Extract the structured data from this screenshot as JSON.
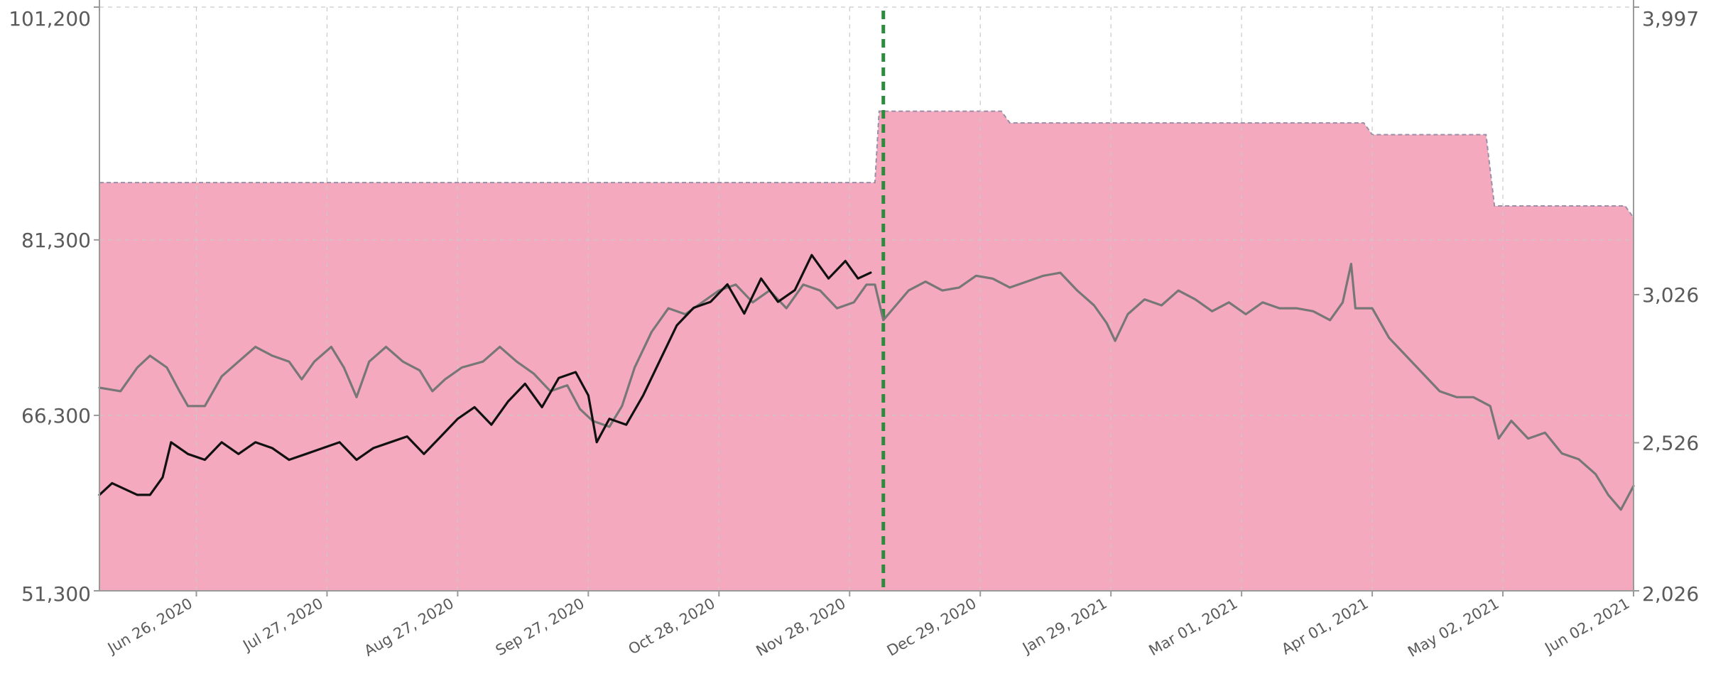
{
  "chart_data": {
    "type": "line",
    "title": "",
    "xlabel": "",
    "ylabel_left": "",
    "ylabel_right": "",
    "x_domain": [
      "2020-06-03",
      "2021-06-02"
    ],
    "x_ticks": [
      {
        "date": "2020-06-26",
        "label": "Jun 26, 2020"
      },
      {
        "date": "2020-07-27",
        "label": "Jul 27, 2020"
      },
      {
        "date": "2020-08-27",
        "label": "Aug 27, 2020"
      },
      {
        "date": "2020-09-27",
        "label": "Sep 27, 2020"
      },
      {
        "date": "2020-10-28",
        "label": "Oct 28, 2020"
      },
      {
        "date": "2020-11-28",
        "label": "Nov 28, 2020"
      },
      {
        "date": "2020-12-29",
        "label": "Dec 29, 2020"
      },
      {
        "date": "2021-01-29",
        "label": "Jan 29, 2021"
      },
      {
        "date": "2021-03-01",
        "label": "Mar 01, 2021"
      },
      {
        "date": "2021-04-01",
        "label": "Apr 01, 2021"
      },
      {
        "date": "2021-05-02",
        "label": "May 02, 2021"
      },
      {
        "date": "2021-06-02",
        "label": "Jun 02, 2021"
      }
    ],
    "left_axis": {
      "range": [
        51300,
        101200
      ],
      "ticks": [
        {
          "value": 51300,
          "label": "51,300"
        },
        {
          "value": 66300,
          "label": "66,300"
        },
        {
          "value": 81300,
          "label": "81,300"
        },
        {
          "value": 101200,
          "label": "101,200"
        }
      ]
    },
    "right_axis": {
      "range": [
        2026,
        3997
      ],
      "ticks": [
        {
          "value": 2026,
          "label": "2,026"
        },
        {
          "value": 2526,
          "label": "2,526"
        },
        {
          "value": 3026,
          "label": "3,026"
        },
        {
          "value": 3997,
          "label": "3,997"
        }
      ]
    },
    "grid": true,
    "marker_line": {
      "date": "2020-12-06",
      "color": "#2e8b3e",
      "style": "dashed"
    },
    "series": [
      {
        "kind": "area",
        "axis": "left",
        "color": "#f4a9bf",
        "points": [
          [
            "2020-06-03",
            86200
          ],
          [
            "2020-12-04",
            86200
          ],
          [
            "2020-12-05",
            92300
          ],
          [
            "2021-01-03",
            92300
          ],
          [
            "2021-01-05",
            91300
          ],
          [
            "2021-03-30",
            91300
          ],
          [
            "2021-04-01",
            90300
          ],
          [
            "2021-04-28",
            90300
          ],
          [
            "2021-04-30",
            84200
          ],
          [
            "2021-05-31",
            84200
          ],
          [
            "2021-06-02",
            83200
          ]
        ]
      },
      {
        "kind": "line",
        "axis": "right",
        "color": "#777777",
        "points": [
          [
            "2020-06-03",
            2712
          ],
          [
            "2020-06-08",
            2700
          ],
          [
            "2020-06-12",
            2780
          ],
          [
            "2020-06-15",
            2820
          ],
          [
            "2020-06-19",
            2780
          ],
          [
            "2020-06-22",
            2700
          ],
          [
            "2020-06-24",
            2650
          ],
          [
            "2020-06-28",
            2650
          ],
          [
            "2020-07-02",
            2750
          ],
          [
            "2020-07-06",
            2800
          ],
          [
            "2020-07-10",
            2850
          ],
          [
            "2020-07-14",
            2820
          ],
          [
            "2020-07-18",
            2800
          ],
          [
            "2020-07-21",
            2740
          ],
          [
            "2020-07-24",
            2800
          ],
          [
            "2020-07-28",
            2850
          ],
          [
            "2020-07-31",
            2780
          ],
          [
            "2020-08-03",
            2680
          ],
          [
            "2020-08-06",
            2800
          ],
          [
            "2020-08-10",
            2850
          ],
          [
            "2020-08-14",
            2800
          ],
          [
            "2020-08-18",
            2770
          ],
          [
            "2020-08-21",
            2700
          ],
          [
            "2020-08-24",
            2740
          ],
          [
            "2020-08-28",
            2780
          ],
          [
            "2020-09-02",
            2800
          ],
          [
            "2020-09-06",
            2850
          ],
          [
            "2020-09-10",
            2800
          ],
          [
            "2020-09-14",
            2760
          ],
          [
            "2020-09-18",
            2700
          ],
          [
            "2020-09-22",
            2720
          ],
          [
            "2020-09-25",
            2640
          ],
          [
            "2020-09-28",
            2600
          ],
          [
            "2020-10-02",
            2580
          ],
          [
            "2020-10-05",
            2650
          ],
          [
            "2020-10-08",
            2780
          ],
          [
            "2020-10-12",
            2900
          ],
          [
            "2020-10-16",
            2980
          ],
          [
            "2020-10-20",
            2960
          ],
          [
            "2020-10-24",
            3000
          ],
          [
            "2020-10-28",
            3040
          ],
          [
            "2020-11-01",
            3060
          ],
          [
            "2020-11-05",
            3000
          ],
          [
            "2020-11-09",
            3040
          ],
          [
            "2020-11-13",
            2980
          ],
          [
            "2020-11-17",
            3060
          ],
          [
            "2020-11-21",
            3040
          ],
          [
            "2020-11-25",
            2980
          ],
          [
            "2020-11-29",
            3000
          ],
          [
            "2020-12-02",
            3060
          ],
          [
            "2020-12-04",
            3060
          ],
          [
            "2020-12-06",
            2940
          ],
          [
            "2020-12-09",
            2990
          ],
          [
            "2020-12-12",
            3040
          ],
          [
            "2020-12-16",
            3070
          ],
          [
            "2020-12-20",
            3040
          ],
          [
            "2020-12-24",
            3050
          ],
          [
            "2020-12-28",
            3090
          ],
          [
            "2021-01-01",
            3080
          ],
          [
            "2021-01-05",
            3050
          ],
          [
            "2021-01-09",
            3070
          ],
          [
            "2021-01-13",
            3090
          ],
          [
            "2021-01-17",
            3100
          ],
          [
            "2021-01-21",
            3040
          ],
          [
            "2021-01-25",
            2990
          ],
          [
            "2021-01-28",
            2930
          ],
          [
            "2021-01-30",
            2870
          ],
          [
            "2021-02-02",
            2960
          ],
          [
            "2021-02-06",
            3010
          ],
          [
            "2021-02-10",
            2990
          ],
          [
            "2021-02-14",
            3040
          ],
          [
            "2021-02-18",
            3010
          ],
          [
            "2021-02-22",
            2970
          ],
          [
            "2021-02-26",
            3000
          ],
          [
            "2021-03-02",
            2960
          ],
          [
            "2021-03-06",
            3000
          ],
          [
            "2021-03-10",
            2980
          ],
          [
            "2021-03-14",
            2980
          ],
          [
            "2021-03-18",
            2970
          ],
          [
            "2021-03-22",
            2940
          ],
          [
            "2021-03-25",
            3000
          ],
          [
            "2021-03-27",
            3130
          ],
          [
            "2021-03-28",
            2980
          ],
          [
            "2021-04-01",
            2980
          ],
          [
            "2021-04-05",
            2880
          ],
          [
            "2021-04-09",
            2820
          ],
          [
            "2021-04-13",
            2760
          ],
          [
            "2021-04-17",
            2700
          ],
          [
            "2021-04-21",
            2680
          ],
          [
            "2021-04-25",
            2680
          ],
          [
            "2021-04-29",
            2650
          ],
          [
            "2021-05-01",
            2540
          ],
          [
            "2021-05-04",
            2600
          ],
          [
            "2021-05-08",
            2540
          ],
          [
            "2021-05-12",
            2560
          ],
          [
            "2021-05-16",
            2490
          ],
          [
            "2021-05-20",
            2470
          ],
          [
            "2021-05-24",
            2420
          ],
          [
            "2021-05-27",
            2350
          ],
          [
            "2021-05-30",
            2300
          ],
          [
            "2021-06-02",
            2380
          ]
        ]
      },
      {
        "kind": "line",
        "axis": "left",
        "color": "#111111",
        "points": [
          [
            "2020-06-03",
            59500
          ],
          [
            "2020-06-06",
            60500
          ],
          [
            "2020-06-09",
            60000
          ],
          [
            "2020-06-12",
            59500
          ],
          [
            "2020-06-15",
            59500
          ],
          [
            "2020-06-18",
            61000
          ],
          [
            "2020-06-20",
            64000
          ],
          [
            "2020-06-24",
            63000
          ],
          [
            "2020-06-28",
            62500
          ],
          [
            "2020-07-02",
            64000
          ],
          [
            "2020-07-06",
            63000
          ],
          [
            "2020-07-10",
            64000
          ],
          [
            "2020-07-14",
            63500
          ],
          [
            "2020-07-18",
            62500
          ],
          [
            "2020-07-22",
            63000
          ],
          [
            "2020-07-26",
            63500
          ],
          [
            "2020-07-30",
            64000
          ],
          [
            "2020-08-03",
            62500
          ],
          [
            "2020-08-07",
            63500
          ],
          [
            "2020-08-11",
            64000
          ],
          [
            "2020-08-15",
            64500
          ],
          [
            "2020-08-19",
            63000
          ],
          [
            "2020-08-23",
            64500
          ],
          [
            "2020-08-27",
            66000
          ],
          [
            "2020-08-31",
            67000
          ],
          [
            "2020-09-04",
            65500
          ],
          [
            "2020-09-08",
            67500
          ],
          [
            "2020-09-12",
            69000
          ],
          [
            "2020-09-16",
            67000
          ],
          [
            "2020-09-20",
            69500
          ],
          [
            "2020-09-24",
            70000
          ],
          [
            "2020-09-27",
            68000
          ],
          [
            "2020-09-29",
            64000
          ],
          [
            "2020-10-02",
            66000
          ],
          [
            "2020-10-06",
            65500
          ],
          [
            "2020-10-10",
            68000
          ],
          [
            "2020-10-14",
            71000
          ],
          [
            "2020-10-18",
            74000
          ],
          [
            "2020-10-22",
            75500
          ],
          [
            "2020-10-26",
            76000
          ],
          [
            "2020-10-30",
            77500
          ],
          [
            "2020-11-03",
            75000
          ],
          [
            "2020-11-07",
            78000
          ],
          [
            "2020-11-11",
            76000
          ],
          [
            "2020-11-15",
            77000
          ],
          [
            "2020-11-19",
            80000
          ],
          [
            "2020-11-23",
            78000
          ],
          [
            "2020-11-27",
            79500
          ],
          [
            "2020-11-30",
            78000
          ],
          [
            "2020-12-03",
            78500
          ]
        ]
      }
    ]
  }
}
